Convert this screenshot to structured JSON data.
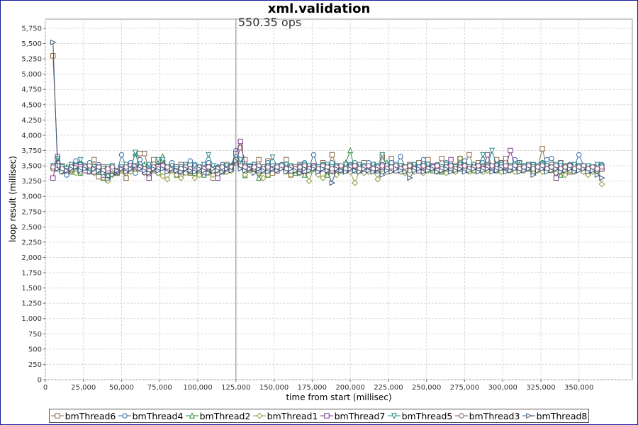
{
  "chart_data": {
    "type": "line",
    "title": "xml.validation",
    "annotation": "550.35 ops",
    "annotation_x": 125000,
    "xlabel": "time from start (millisec)",
    "ylabel": "loop result (millisec)",
    "xlim": [
      0,
      385000
    ],
    "ylim": [
      0,
      5900
    ],
    "x_ticks": [
      0,
      25000,
      50000,
      75000,
      100000,
      125000,
      150000,
      175000,
      200000,
      225000,
      250000,
      275000,
      300000,
      325000,
      350000
    ],
    "x_tick_labels": [
      "0",
      "25,000",
      "50,000",
      "75,000",
      "100,000",
      "125,000",
      "150,000",
      "175,000",
      "200,000",
      "225,000",
      "250,000",
      "275,000",
      "300,000",
      "325,000",
      "350,000"
    ],
    "y_ticks": [
      0,
      250,
      500,
      750,
      1000,
      1250,
      1500,
      1750,
      2000,
      2250,
      2500,
      2750,
      3000,
      3250,
      3500,
      3750,
      4000,
      4250,
      4500,
      4750,
      5000,
      5250,
      5500,
      5750
    ],
    "y_tick_labels": [
      "0",
      "250",
      "500",
      "750",
      "1,000",
      "1,250",
      "1,500",
      "1,750",
      "2,000",
      "2,250",
      "2,500",
      "2,750",
      "3,000",
      "3,250",
      "3,500",
      "3,750",
      "4,000",
      "4,250",
      "4,500",
      "4,750",
      "5,000",
      "5,250",
      "5,500",
      "5,750"
    ],
    "grid": true,
    "legend_position": "bottom",
    "x": [
      5000,
      8000,
      11000,
      14000,
      17000,
      20000,
      23000,
      26000,
      29000,
      32000,
      35000,
      38000,
      41000,
      44000,
      47000,
      50000,
      53000,
      56000,
      59000,
      62000,
      65000,
      68000,
      71000,
      74000,
      77000,
      80000,
      83000,
      86000,
      89000,
      92000,
      95000,
      98000,
      101000,
      104000,
      107000,
      110000,
      113000,
      116000,
      119000,
      122000,
      125000,
      128000,
      131000,
      134000,
      137000,
      140000,
      143000,
      146000,
      149000,
      152000,
      155000,
      158000,
      161000,
      164000,
      167000,
      170000,
      173000,
      176000,
      179000,
      182000,
      185000,
      188000,
      191000,
      194000,
      197000,
      200000,
      203000,
      206000,
      209000,
      212000,
      215000,
      218000,
      221000,
      224000,
      227000,
      230000,
      233000,
      236000,
      239000,
      242000,
      245000,
      248000,
      251000,
      254000,
      257000,
      260000,
      263000,
      266000,
      269000,
      272000,
      275000,
      278000,
      281000,
      284000,
      287000,
      290000,
      293000,
      296000,
      299000,
      302000,
      305000,
      308000,
      311000,
      314000,
      317000,
      320000,
      323000,
      326000,
      329000,
      332000,
      335000,
      338000,
      341000,
      344000,
      347000,
      350000,
      353000,
      356000,
      359000,
      362000,
      365000
    ],
    "series": [
      {
        "name": "bmThread6",
        "marker": "square",
        "color": "#8b6a4a",
        "values": [
          5300,
          3600,
          3500,
          3450,
          3480,
          3470,
          3520,
          3450,
          3400,
          3600,
          3320,
          3480,
          3350,
          3450,
          3380,
          3420,
          3300,
          3500,
          3450,
          3700,
          3700,
          3420,
          3600,
          3500,
          3550,
          3450,
          3500,
          3380,
          3520,
          3450,
          3380,
          3500,
          3400,
          3450,
          3500,
          3300,
          3450,
          3400,
          3520,
          3450,
          3550,
          3800,
          3600,
          3450,
          3520,
          3600,
          3420,
          3580,
          3380,
          3450,
          3500,
          3600,
          3350,
          3480,
          3520,
          3400,
          3450,
          3500,
          3480,
          3550,
          3400,
          3680,
          3500,
          3420,
          3450,
          3500,
          3420,
          3480,
          3550,
          3450,
          3520,
          3420,
          3650,
          3500,
          3620,
          3480,
          3500,
          3450,
          3520,
          3480,
          3550,
          3420,
          3600,
          3500,
          3450,
          3620,
          3480,
          3450,
          3500,
          3620,
          3520,
          3680,
          3480,
          3550,
          3450,
          3520,
          3480,
          3600,
          3550,
          3620,
          3500,
          3480,
          3550,
          3500,
          3450,
          3520,
          3480,
          3780,
          3450,
          3520,
          3480,
          3550,
          3500,
          3400,
          3450,
          3500,
          3420,
          3380,
          3450,
          3420,
          3450
        ]
      },
      {
        "name": "bmThread4",
        "marker": "circle",
        "color": "#2f6da8",
        "values": [
          3450,
          3550,
          3400,
          3350,
          3500,
          3580,
          3520,
          3450,
          3550,
          3480,
          3520,
          3420,
          3380,
          3450,
          3400,
          3680,
          3480,
          3550,
          3380,
          3600,
          3480,
          3500,
          3450,
          3380,
          3520,
          3480,
          3550,
          3420,
          3350,
          3480,
          3580,
          3520,
          3450,
          3480,
          3550,
          3420,
          3480,
          3520,
          3450,
          3500,
          3750,
          3600,
          3480,
          3500,
          3520,
          3450,
          3480,
          3550,
          3500,
          3480,
          3520,
          3450,
          3480,
          3420,
          3500,
          3550,
          3480,
          3680,
          3450,
          3520,
          3480,
          3550,
          3500,
          3420,
          3480,
          3520,
          3550,
          3480,
          3500,
          3550,
          3480,
          3500,
          3520,
          3480,
          3550,
          3500,
          3650,
          3480,
          3500,
          3520,
          3480,
          3600,
          3450,
          3500,
          3520,
          3480,
          3550,
          3500,
          3480,
          3520,
          3580,
          3480,
          3520,
          3480,
          3550,
          3500,
          3480,
          3520,
          3550,
          3500,
          3480,
          3600,
          3550,
          3500,
          3480,
          3520,
          3500,
          3550,
          3600,
          3620,
          3500,
          3550,
          3480,
          3520,
          3500,
          3680,
          3500,
          3450,
          3480,
          3500,
          3520
        ]
      },
      {
        "name": "bmThread2",
        "marker": "triangle-up",
        "color": "#2a8a3a",
        "values": [
          3500,
          3450,
          3420,
          3480,
          3400,
          3450,
          3380,
          3500,
          3420,
          3450,
          3400,
          3300,
          3350,
          3420,
          3380,
          3450,
          3500,
          3480,
          3700,
          3480,
          3520,
          3400,
          3450,
          3500,
          3650,
          3420,
          3480,
          3350,
          3450,
          3500,
          3400,
          3380,
          3420,
          3350,
          3420,
          3450,
          3480,
          3400,
          3450,
          3500,
          3620,
          3500,
          3340,
          3480,
          3450,
          3300,
          3420,
          3350,
          3450,
          3420,
          3500,
          3450,
          3400,
          3380,
          3450,
          3350,
          3420,
          3480,
          3450,
          3500,
          3350,
          3450,
          3400,
          3480,
          3550,
          3750,
          3420,
          3450,
          3500,
          3480,
          3450,
          3420,
          3480,
          3550,
          3450,
          3480,
          3420,
          3450,
          3480,
          3500,
          3420,
          3450,
          3480,
          3420,
          3450,
          3400,
          3450,
          3480,
          3420,
          3450,
          3500,
          3480,
          3420,
          3450,
          3500,
          3480,
          3450,
          3420,
          3500,
          3480,
          3450,
          3500,
          3520,
          3480,
          3450,
          3400,
          3450,
          3550,
          3500,
          3450,
          3500,
          3350,
          3450,
          3500,
          3480,
          3450,
          3500,
          3420,
          3450,
          3420,
          3450
        ]
      },
      {
        "name": "bmThread1",
        "marker": "diamond",
        "color": "#8c9a3a",
        "values": [
          3450,
          3480,
          3400,
          3450,
          3420,
          3380,
          3400,
          3450,
          3420,
          3380,
          3450,
          3300,
          3250,
          3350,
          3380,
          3420,
          3380,
          3400,
          3450,
          3450,
          3380,
          3350,
          3420,
          3380,
          3330,
          3280,
          3420,
          3350,
          3300,
          3380,
          3420,
          3300,
          3350,
          3420,
          3380,
          3350,
          3420,
          3450,
          3400,
          3420,
          3600,
          3480,
          3350,
          3420,
          3450,
          3380,
          3300,
          3350,
          3450,
          3420,
          3500,
          3400,
          3350,
          3420,
          3380,
          3420,
          3250,
          3450,
          3350,
          3300,
          3420,
          3400,
          3350,
          3450,
          3420,
          3400,
          3220,
          3420,
          3380,
          3400,
          3420,
          3280,
          3450,
          3400,
          3420,
          3450,
          3400,
          3380,
          3420,
          3400,
          3450,
          3380,
          3420,
          3450,
          3400,
          3420,
          3380,
          3450,
          3400,
          3620,
          3450,
          3400,
          3420,
          3450,
          3400,
          3420,
          3450,
          3420,
          3400,
          3450,
          3420,
          3400,
          3450,
          3420,
          3480,
          3380,
          3420,
          3400,
          3450,
          3420,
          3380,
          3400,
          3350,
          3420,
          3400,
          3450,
          3400,
          3350,
          3400,
          3450,
          3200
        ]
      },
      {
        "name": "bmThread7",
        "marker": "square",
        "color": "#7a3a8a",
        "values": [
          3300,
          3650,
          3480,
          3420,
          3450,
          3500,
          3480,
          3420,
          3450,
          3400,
          3480,
          3350,
          3420,
          3450,
          3400,
          3450,
          3420,
          3500,
          3480,
          3450,
          3400,
          3300,
          3450,
          3480,
          3500,
          3420,
          3450,
          3480,
          3400,
          3450,
          3420,
          3480,
          3450,
          3400,
          3480,
          3450,
          3300,
          3420,
          3450,
          3480,
          3700,
          3900,
          3500,
          3450,
          3480,
          3420,
          3450,
          3500,
          3450,
          3420,
          3480,
          3450,
          3420,
          3450,
          3480,
          3420,
          3450,
          3500,
          3420,
          3450,
          3480,
          3420,
          3450,
          3480,
          3420,
          3450,
          3500,
          3420,
          3450,
          3480,
          3420,
          3450,
          3480,
          3500,
          3450,
          3420,
          3480,
          3450,
          3500,
          3450,
          3420,
          3480,
          3450,
          3500,
          3420,
          3450,
          3480,
          3600,
          3450,
          3480,
          3500,
          3450,
          3480,
          3500,
          3450,
          3680,
          3480,
          3500,
          3520,
          3480,
          3750,
          3500,
          3480,
          3450,
          3520,
          3480,
          3450,
          3500,
          3480,
          3450,
          3300,
          3480,
          3450,
          3500,
          3480,
          3450,
          3480,
          3420,
          3450,
          3480,
          3450
        ]
      },
      {
        "name": "bmThread5",
        "marker": "triangle-down",
        "color": "#2a8a8a",
        "values": [
          3500,
          3620,
          3480,
          3450,
          3520,
          3480,
          3600,
          3500,
          3450,
          3480,
          3420,
          3450,
          3480,
          3500,
          3400,
          3480,
          3520,
          3450,
          3720,
          3480,
          3500,
          3520,
          3450,
          3600,
          3600,
          3480,
          3500,
          3450,
          3480,
          3520,
          3450,
          3500,
          3480,
          3520,
          3680,
          3500,
          3450,
          3480,
          3500,
          3480,
          3650,
          3600,
          3500,
          3480,
          3520,
          3450,
          3480,
          3500,
          3640,
          3500,
          3480,
          3520,
          3500,
          3450,
          3480,
          3520,
          3500,
          3450,
          3480,
          3500,
          3520,
          3480,
          3500,
          3450,
          3520,
          3500,
          3480,
          3520,
          3500,
          3480,
          3520,
          3500,
          3680,
          3500,
          3480,
          3520,
          3500,
          3480,
          3500,
          3520,
          3480,
          3500,
          3520,
          3480,
          3500,
          3480,
          3520,
          3500,
          3480,
          3520,
          3500,
          3480,
          3520,
          3500,
          3680,
          3500,
          3750,
          3500,
          3520,
          3480,
          3500,
          3520,
          3480,
          3500,
          3520,
          3480,
          3500,
          3520,
          3500,
          3480,
          3520,
          3500,
          3480,
          3500,
          3520,
          3500,
          3480,
          3500,
          3480,
          3520,
          3500
        ]
      },
      {
        "name": "bmThread3",
        "marker": "circle",
        "color": "#8a5a7a",
        "values": [
          3480,
          3500,
          3450,
          3420,
          3480,
          3500,
          3450,
          3480,
          3500,
          3450,
          3480,
          3420,
          3450,
          3480,
          3420,
          3450,
          3480,
          3450,
          3500,
          3480,
          3450,
          3420,
          3480,
          3450,
          3500,
          3480,
          3450,
          3420,
          3450,
          3480,
          3450,
          3420,
          3480,
          3450,
          3480,
          3420,
          3450,
          3480,
          3450,
          3480,
          3600,
          3500,
          3480,
          3450,
          3480,
          3500,
          3450,
          3480,
          3450,
          3480,
          3500,
          3450,
          3480,
          3450,
          3480,
          3500,
          3450,
          3480,
          3450,
          3500,
          3480,
          3450,
          3480,
          3500,
          3450,
          3480,
          3500,
          3450,
          3480,
          3500,
          3450,
          3480,
          3500,
          3450,
          3480,
          3500,
          3450,
          3480,
          3500,
          3450,
          3480,
          3500,
          3450,
          3480,
          3500,
          3450,
          3480,
          3500,
          3450,
          3480,
          3500,
          3450,
          3480,
          3500,
          3450,
          3480,
          3500,
          3450,
          3480,
          3500,
          3480,
          3500,
          3450,
          3480,
          3500,
          3450,
          3480,
          3500,
          3450,
          3480,
          3500,
          3450,
          3480,
          3500,
          3450,
          3480,
          3500,
          3450,
          3480,
          3450,
          3480
        ]
      },
      {
        "name": "bmThread8",
        "marker": "triangle-right",
        "color": "#3a5a7a",
        "values": [
          5520,
          3450,
          3400,
          3420,
          3450,
          3480,
          3420,
          3450,
          3400,
          3450,
          3420,
          3380,
          3280,
          3350,
          3420,
          3450,
          3400,
          3450,
          3500,
          3450,
          3420,
          3380,
          3450,
          3420,
          3450,
          3400,
          3450,
          3420,
          3400,
          3450,
          3420,
          3400,
          3450,
          3420,
          3380,
          3450,
          3420,
          3400,
          3450,
          3420,
          3580,
          3450,
          3420,
          3450,
          3380,
          3450,
          3420,
          3400,
          3450,
          3420,
          3450,
          3400,
          3450,
          3420,
          3380,
          3450,
          3420,
          3450,
          3400,
          3450,
          3420,
          3220,
          3450,
          3420,
          3400,
          3450,
          3420,
          3400,
          3450,
          3420,
          3400,
          3450,
          3350,
          3420,
          3400,
          3450,
          3420,
          3400,
          3300,
          3420,
          3450,
          3400,
          3420,
          3450,
          3400,
          3420,
          3450,
          3400,
          3420,
          3450,
          3400,
          3420,
          3450,
          3400,
          3420,
          3450,
          3400,
          3420,
          3450,
          3400,
          3420,
          3450,
          3400,
          3420,
          3450,
          3350,
          3420,
          3450,
          3400,
          3420,
          3450,
          3400,
          3420,
          3450,
          3400,
          3420,
          3450,
          3400,
          3420,
          3350,
          3300
        ]
      }
    ]
  }
}
